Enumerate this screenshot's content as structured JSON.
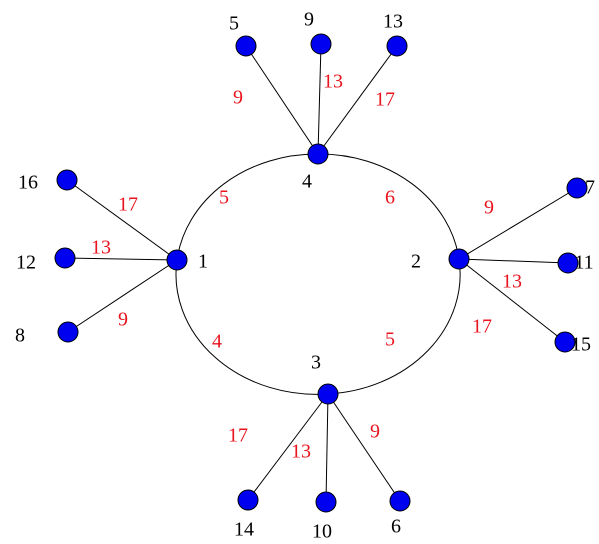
{
  "nodes": [
    {
      "label": "1"
    },
    {
      "label": "2"
    },
    {
      "label": "3"
    },
    {
      "label": "4"
    },
    {
      "label": "5"
    },
    {
      "label": "9"
    },
    {
      "label": "13"
    },
    {
      "label": "16"
    },
    {
      "label": "12"
    },
    {
      "label": "8"
    },
    {
      "label": "7"
    },
    {
      "label": "11"
    },
    {
      "label": "15"
    },
    {
      "label": "14"
    },
    {
      "label": "10"
    },
    {
      "label": "6"
    }
  ],
  "edges": [
    {
      "label": "5"
    },
    {
      "label": "6"
    },
    {
      "label": "5"
    },
    {
      "label": "4"
    },
    {
      "label": "9"
    },
    {
      "label": "13"
    },
    {
      "label": "17"
    },
    {
      "label": "17"
    },
    {
      "label": "13"
    },
    {
      "label": "9"
    },
    {
      "label": "9"
    },
    {
      "label": "13"
    },
    {
      "label": "17"
    },
    {
      "label": "17"
    },
    {
      "label": "13"
    },
    {
      "label": "9"
    }
  ]
}
